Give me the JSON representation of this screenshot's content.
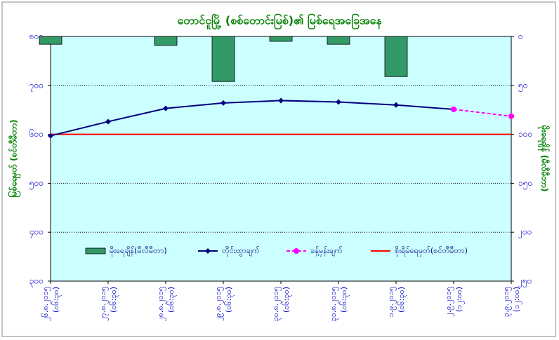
{
  "chart_data": {
    "type": "combo",
    "title": "တောင်ငူမြို့ (စစ်တောင်းမြစ်)၏ မြစ်ရေအခြေအနေ",
    "y_label": "မြစ်ရေမှတ် (စင်တီမီတာ)",
    "y2_label": "မိုးရေချိန် (မီလီမီတာ)",
    "categories": [
      "၂၆.၈.၂၀၁၅",
      "၂၇.၈.၂၀၁၅",
      "၂၈.၈.၂၀၁၅",
      "၂၉.၈.၂၀၁၅",
      "၃၀.၈.၂၀၁၅",
      "၃၁.၈.၂၀၁၅",
      "၁.၉.၂၀၁၅",
      "၂.၉.၂၀၁၅",
      "၃.၉.၂၀၁၅"
    ],
    "times": [
      "(၀၆:၃၀)",
      "(၀၆:၃၀)",
      "(၀၆:၃၀)",
      "(၀၆:၃၀)",
      "(၀၆:၃၀)",
      "(၀၆:၃၀)",
      "(၀၆:၃၀)",
      "(၁၂:၀၀)",
      "(၁၂:၀၀)"
    ],
    "ylim": [
      300,
      800
    ],
    "yticks": [
      {
        "value": 300,
        "label": "၃၀၀"
      },
      {
        "value": 400,
        "label": "၄၀၀"
      },
      {
        "value": 500,
        "label": "၅၀၀"
      },
      {
        "value": 600,
        "label": "၆၀၀"
      },
      {
        "value": 700,
        "label": "၇၀၀"
      },
      {
        "value": 800,
        "label": "၈၀၀"
      }
    ],
    "y2lim": [
      0,
      250
    ],
    "y2_inverted": true,
    "y2ticks": [
      {
        "value": 0,
        "label": "၀"
      },
      {
        "value": 50,
        "label": "၅၀"
      },
      {
        "value": 100,
        "label": "၁၀၀"
      },
      {
        "value": 150,
        "label": "၁၅၀"
      },
      {
        "value": 200,
        "label": "၂၀၀"
      },
      {
        "value": 250,
        "label": "၂၅၀"
      }
    ],
    "grid": true,
    "series": [
      {
        "name": "မိုးရေချိန်(မီလီမီတာ)",
        "kind": "bar",
        "axis": "y2",
        "color": "#339966",
        "values": [
          8,
          null,
          9,
          46,
          5,
          8,
          41,
          null,
          null
        ]
      },
      {
        "name": "တိုင်းထွာချက်",
        "kind": "line",
        "color": "#000080",
        "values": [
          597,
          626,
          653,
          664,
          669,
          666,
          660,
          651,
          null
        ]
      },
      {
        "name": "ခန့်မှန်းချက်",
        "kind": "forecast",
        "color": "#ff00ff",
        "values": [
          null,
          null,
          null,
          null,
          null,
          null,
          null,
          651,
          637
        ]
      }
    ],
    "danger_level": 600,
    "danger_label": "စိုးရိမ်ရေမှတ်(စင်တီမီတာ)",
    "danger_color": "#ff0000"
  }
}
